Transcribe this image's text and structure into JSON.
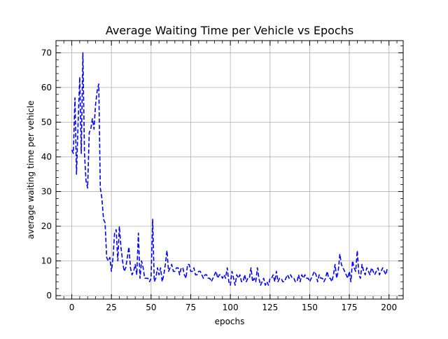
{
  "chart_data": {
    "type": "line",
    "title": "Average Waiting Time per Vehicle vs Epochs",
    "xlabel": "epochs",
    "ylabel": "average waiting time per vehicle",
    "xlim": [
      -9.95,
      208.95
    ],
    "ylim": [
      -1,
      73.5
    ],
    "xticks": [
      0,
      25,
      50,
      75,
      100,
      125,
      150,
      175,
      200
    ],
    "yticks": [
      0,
      10,
      20,
      30,
      40,
      50,
      60,
      70
    ],
    "grid": true,
    "legend": "none",
    "series": [
      {
        "color": "#0000ff",
        "linestyle": "dashed",
        "x": [
          0,
          1,
          2,
          3,
          4,
          5,
          6,
          7,
          8,
          9,
          10,
          11,
          12,
          13,
          14,
          15,
          16,
          17,
          18,
          19,
          20,
          21,
          22,
          23,
          24,
          25,
          26,
          27,
          28,
          29,
          30,
          31,
          32,
          33,
          34,
          35,
          36,
          37,
          38,
          39,
          40,
          41,
          42,
          43,
          44,
          45,
          46,
          47,
          48,
          49,
          50,
          51,
          52,
          53,
          54,
          55,
          56,
          57,
          58,
          59,
          60,
          61,
          62,
          63,
          64,
          65,
          66,
          67,
          68,
          69,
          70,
          71,
          72,
          73,
          74,
          75,
          76,
          77,
          78,
          79,
          80,
          81,
          82,
          83,
          84,
          85,
          86,
          87,
          88,
          89,
          90,
          91,
          92,
          93,
          94,
          95,
          96,
          97,
          98,
          99,
          100,
          101,
          102,
          103,
          104,
          105,
          106,
          107,
          108,
          109,
          110,
          111,
          112,
          113,
          114,
          115,
          116,
          117,
          118,
          119,
          120,
          121,
          122,
          123,
          124,
          125,
          126,
          127,
          128,
          129,
          130,
          131,
          132,
          133,
          134,
          135,
          136,
          137,
          138,
          139,
          140,
          141,
          142,
          143,
          144,
          145,
          146,
          147,
          148,
          149,
          150,
          151,
          152,
          153,
          154,
          155,
          156,
          157,
          158,
          159,
          160,
          161,
          162,
          163,
          164,
          165,
          166,
          167,
          168,
          169,
          170,
          171,
          172,
          173,
          174,
          175,
          176,
          177,
          178,
          179,
          180,
          181,
          182,
          183,
          184,
          185,
          186,
          187,
          188,
          189,
          190,
          191,
          192,
          193,
          194,
          195,
          196,
          197,
          198,
          199
        ],
        "y": [
          42,
          41,
          57,
          35,
          50,
          63,
          41,
          70,
          41,
          33,
          31,
          47,
          48,
          51,
          48,
          55,
          59,
          61,
          31,
          28,
          22,
          21,
          11,
          10,
          11,
          7,
          11,
          18,
          19,
          10,
          20,
          14,
          10,
          7,
          8,
          11,
          14,
          8,
          6,
          7,
          9,
          6,
          18,
          5,
          10,
          8,
          5,
          5,
          5,
          4,
          5,
          22,
          4,
          5,
          8,
          6,
          8,
          4,
          6,
          9,
          13,
          7,
          8,
          9,
          7,
          7,
          8,
          8,
          6,
          8,
          8,
          6,
          5,
          9,
          9,
          7,
          7,
          8,
          6,
          6,
          7,
          7,
          6,
          5,
          6,
          6,
          5,
          5,
          4,
          5,
          6,
          7,
          5,
          6,
          6,
          5,
          6,
          5,
          8,
          4,
          3,
          7,
          5,
          3,
          6,
          5,
          6,
          4,
          4,
          6,
          4,
          5,
          5,
          8,
          4,
          5,
          4,
          8,
          5,
          3,
          4,
          5,
          3,
          4,
          3,
          5,
          5,
          6,
          4,
          7,
          4,
          5,
          5,
          4,
          4,
          5,
          6,
          5,
          6,
          5,
          5,
          4,
          4,
          6,
          4,
          6,
          5,
          6,
          5,
          5,
          4,
          5,
          6,
          7,
          6,
          4,
          6,
          5,
          5,
          4,
          5,
          7,
          5,
          5,
          4,
          6,
          9,
          5,
          7,
          12,
          9,
          8,
          7,
          6,
          5,
          7,
          4,
          10,
          8,
          7,
          13,
          6,
          5,
          9,
          7,
          6,
          8,
          7,
          6,
          8,
          7,
          6,
          7,
          8,
          6,
          7,
          8,
          7,
          6,
          8
        ]
      }
    ]
  }
}
